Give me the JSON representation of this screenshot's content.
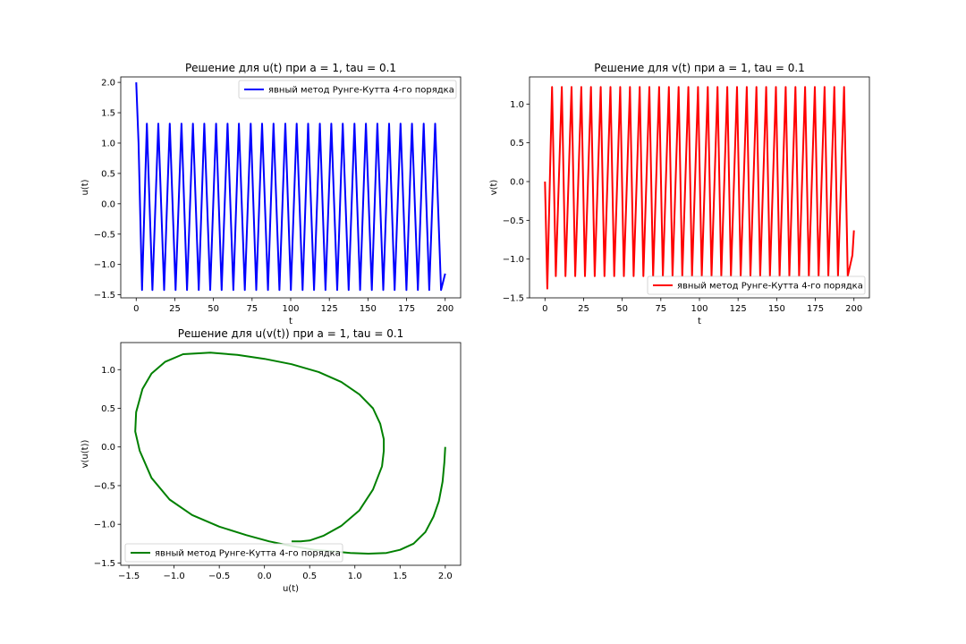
{
  "chart_data": [
    {
      "type": "line",
      "title": "Решение для u(t) при a = 1, tau = 0.1",
      "xlabel": "t",
      "ylabel": "u(t)",
      "xlim": [
        -10,
        210
      ],
      "ylim": [
        -1.55,
        2.09
      ],
      "xticks": [
        0,
        25,
        50,
        75,
        100,
        125,
        150,
        175,
        200
      ],
      "yticks": [
        -1.5,
        -1.0,
        -0.5,
        0.0,
        0.5,
        1.0,
        1.5,
        2.0
      ],
      "ytick_labels": [
        "−1.5",
        "−1.0",
        "−0.5",
        "0.0",
        "0.5",
        "1.0",
        "1.5",
        "2.0"
      ],
      "legend": {
        "label": "явный метод Рунге-Кутта 4-го порядка",
        "loc": "upper right"
      },
      "series": [
        {
          "name": "явный метод Рунге-Кутта 4-го порядка",
          "color": "#0000ff",
          "x": [
            0,
            1.5,
            3.8,
            6.9,
            10.5,
            14.3,
            18.1,
            21.7,
            25.5,
            29.3,
            32.9,
            36.7,
            40.5,
            44.1,
            47.9,
            51.7,
            55.3,
            59.1,
            62.9,
            66.5,
            70.3,
            74.1,
            77.7,
            81.5,
            85.3,
            88.9,
            92.7,
            96.5,
            100.1,
            103.9,
            107.7,
            111.3,
            115.1,
            118.9,
            122.5,
            126.3,
            130.1,
            133.7,
            137.5,
            141.3,
            144.9,
            148.7,
            152.5,
            156.1,
            159.9,
            163.7,
            167.3,
            171.1,
            174.9,
            178.5,
            182.3,
            186.1,
            189.7,
            193.5,
            197.3,
            200.0
          ],
          "y": [
            2.0,
            1.0,
            -1.42,
            1.32,
            -1.42,
            1.32,
            -1.42,
            1.32,
            -1.42,
            1.32,
            -1.42,
            1.32,
            -1.42,
            1.32,
            -1.42,
            1.32,
            -1.42,
            1.32,
            -1.42,
            1.32,
            -1.42,
            1.32,
            -1.42,
            1.32,
            -1.42,
            1.32,
            -1.42,
            1.32,
            -1.42,
            1.32,
            -1.42,
            1.32,
            -1.42,
            1.32,
            -1.42,
            1.32,
            -1.42,
            1.32,
            -1.42,
            1.32,
            -1.42,
            1.32,
            -1.42,
            1.32,
            -1.42,
            1.32,
            -1.42,
            1.32,
            -1.42,
            1.32,
            -1.42,
            1.32,
            -1.42,
            1.32,
            -1.42,
            -1.15
          ]
        }
      ]
    },
    {
      "type": "line",
      "title": "Решение для v(t) при a = 1, tau = 0.1",
      "xlabel": "t",
      "ylabel": "v(t)",
      "xlim": [
        -10,
        210
      ],
      "ylim": [
        -1.5,
        1.35
      ],
      "xticks": [
        0,
        25,
        50,
        75,
        100,
        125,
        150,
        175,
        200
      ],
      "yticks": [
        -1.5,
        -1.0,
        -0.5,
        0.0,
        0.5,
        1.0
      ],
      "ytick_labels": [
        "−1.5",
        "−1.0",
        "−0.5",
        "0.0",
        "0.5",
        "1.0"
      ],
      "legend": {
        "label": "явный метод Рунге-Кутта 4-го порядка",
        "loc": "lower right"
      },
      "series": [
        {
          "name": "явный метод Рунге-Кутта 4-го порядка",
          "color": "#ff0000",
          "x": [
            0,
            1.5,
            4.6,
            7.0,
            10.9,
            13.3,
            17.2,
            19.6,
            23.5,
            25.9,
            29.8,
            32.2,
            36.1,
            38.5,
            42.4,
            44.8,
            48.7,
            51.1,
            55.0,
            57.4,
            61.3,
            63.7,
            67.6,
            70.0,
            73.9,
            76.3,
            80.2,
            82.6,
            86.5,
            88.9,
            92.8,
            95.2,
            99.1,
            101.5,
            105.4,
            107.8,
            111.7,
            114.1,
            118.0,
            120.4,
            124.3,
            126.7,
            130.6,
            133.0,
            136.9,
            139.3,
            143.2,
            145.6,
            149.5,
            151.9,
            155.8,
            158.2,
            162.1,
            164.5,
            168.4,
            170.8,
            174.7,
            177.1,
            181.0,
            183.4,
            187.3,
            189.7,
            193.6,
            196.0,
            199.0,
            200.0
          ],
          "y": [
            0.0,
            -1.38,
            1.22,
            -1.22,
            1.22,
            -1.22,
            1.22,
            -1.22,
            1.22,
            -1.22,
            1.22,
            -1.22,
            1.22,
            -1.22,
            1.22,
            -1.22,
            1.22,
            -1.22,
            1.22,
            -1.22,
            1.22,
            -1.22,
            1.22,
            -1.22,
            1.22,
            -1.22,
            1.22,
            -1.22,
            1.22,
            -1.22,
            1.22,
            -1.22,
            1.22,
            -1.22,
            1.22,
            -1.22,
            1.22,
            -1.22,
            1.22,
            -1.22,
            1.22,
            -1.22,
            1.22,
            -1.22,
            1.22,
            -1.22,
            1.22,
            -1.22,
            1.22,
            -1.22,
            1.22,
            -1.22,
            1.22,
            -1.22,
            1.22,
            -1.22,
            1.22,
            -1.22,
            1.22,
            -1.22,
            1.22,
            -1.22,
            1.22,
            -1.22,
            -0.95,
            -0.63
          ]
        }
      ]
    },
    {
      "type": "line",
      "title": "Решение для u(v(t)) при a = 1, tau = 0.1",
      "xlabel": "u(t)",
      "ylabel": "v(u(t))",
      "xlim": [
        -1.59,
        2.17
      ],
      "ylim": [
        -1.53,
        1.35
      ],
      "xticks": [
        -1.5,
        -1.0,
        -0.5,
        0.0,
        0.5,
        1.0,
        1.5,
        2.0
      ],
      "xtick_labels": [
        "−1.5",
        "−1.0",
        "−0.5",
        "0.0",
        "0.5",
        "1.0",
        "1.5",
        "2.0"
      ],
      "yticks": [
        -1.5,
        -1.0,
        -0.5,
        0.0,
        0.5,
        1.0
      ],
      "ytick_labels": [
        "−1.5",
        "−1.0",
        "−0.5",
        "0.0",
        "0.5",
        "1.0"
      ],
      "legend": {
        "label": "явный метод Рунге-Кутта 4-го порядка",
        "loc": "lower left"
      },
      "series": [
        {
          "name": "явный метод Рунге-Кутта 4-го порядка",
          "color": "#008000",
          "x": [
            2.0,
            1.99,
            1.97,
            1.93,
            1.87,
            1.78,
            1.65,
            1.5,
            1.35,
            1.15,
            0.95,
            0.75,
            0.55,
            0.4,
            0.25,
            0.05,
            -0.2,
            -0.5,
            -0.8,
            -1.05,
            -1.25,
            -1.38,
            -1.43,
            -1.42,
            -1.35,
            -1.25,
            -1.1,
            -0.9,
            -0.6,
            -0.3,
            0.0,
            0.3,
            0.6,
            0.85,
            1.05,
            1.2,
            1.28,
            1.32,
            1.32,
            1.3,
            1.2,
            1.05,
            0.85,
            0.65,
            0.5,
            0.4,
            0.3
          ],
          "y": [
            0.0,
            -0.2,
            -0.45,
            -0.7,
            -0.9,
            -1.1,
            -1.25,
            -1.33,
            -1.37,
            -1.38,
            -1.37,
            -1.35,
            -1.33,
            -1.3,
            -1.27,
            -1.22,
            -1.14,
            -1.03,
            -0.88,
            -0.68,
            -0.4,
            -0.05,
            0.2,
            0.45,
            0.75,
            0.95,
            1.1,
            1.2,
            1.22,
            1.19,
            1.14,
            1.07,
            0.97,
            0.84,
            0.68,
            0.5,
            0.3,
            0.1,
            -0.05,
            -0.25,
            -0.55,
            -0.82,
            -1.02,
            -1.15,
            -1.21,
            -1.22,
            -1.22
          ]
        }
      ]
    }
  ]
}
